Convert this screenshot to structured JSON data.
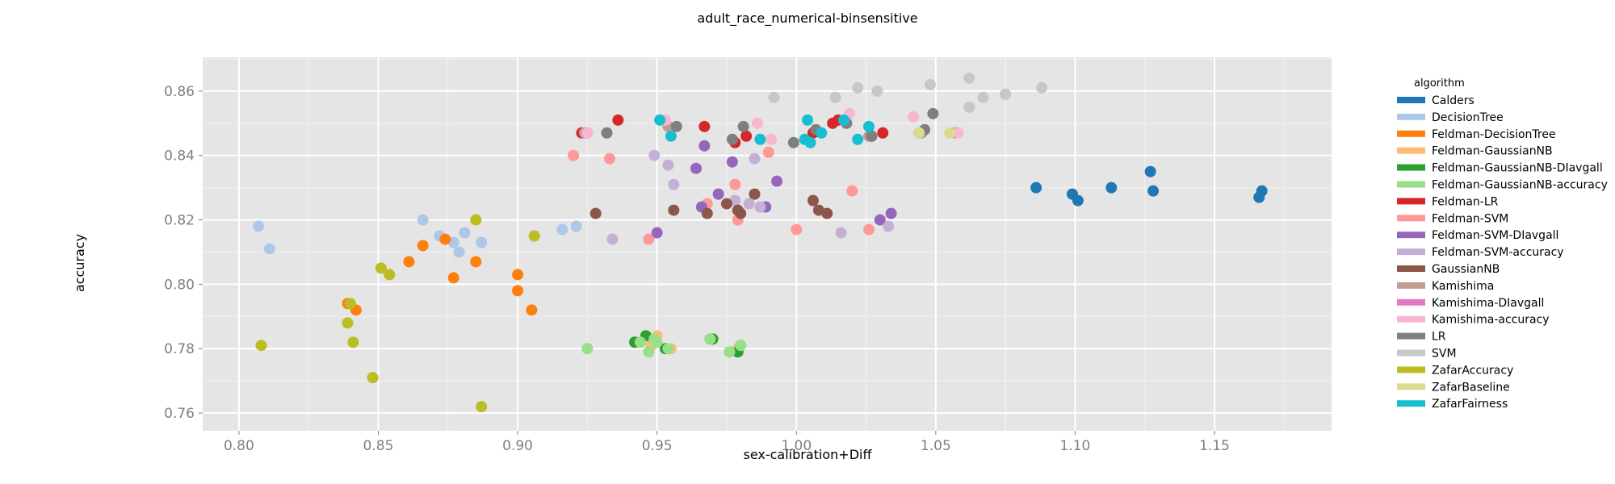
{
  "chart_data": {
    "type": "scatter",
    "title": "adult_race_numerical-binsensitive",
    "xlabel": "sex-calibration+Diff",
    "ylabel": "accuracy",
    "xlim": [
      0.787,
      1.192
    ],
    "ylim": [
      0.7545,
      0.8705
    ],
    "x_ticks": [
      0.8,
      0.85,
      0.9,
      0.95,
      1.0,
      1.05,
      1.1,
      1.15
    ],
    "x_tick_labels": [
      "0.80",
      "0.85",
      "0.90",
      "0.95",
      "1.00",
      "1.05",
      "1.10",
      "1.15"
    ],
    "y_ticks": [
      0.76,
      0.78,
      0.8,
      0.82,
      0.84,
      0.86
    ],
    "y_tick_labels": [
      "0.76",
      "0.78",
      "0.80",
      "0.82",
      "0.84",
      "0.86"
    ],
    "grid": true,
    "legend_title": "algorithm",
    "legend_position": "right",
    "series": [
      {
        "name": "Calders",
        "color": "#1f77b4",
        "points": [
          [
            1.086,
            0.83
          ],
          [
            1.099,
            0.828
          ],
          [
            1.101,
            0.826
          ],
          [
            1.113,
            0.83
          ],
          [
            1.127,
            0.835
          ],
          [
            1.128,
            0.829
          ],
          [
            1.166,
            0.827
          ],
          [
            1.167,
            0.829
          ]
        ]
      },
      {
        "name": "DecisionTree",
        "color": "#aec7e8",
        "points": [
          [
            0.807,
            0.818
          ],
          [
            0.811,
            0.811
          ],
          [
            0.866,
            0.82
          ],
          [
            0.872,
            0.815
          ],
          [
            0.877,
            0.813
          ],
          [
            0.879,
            0.81
          ],
          [
            0.881,
            0.816
          ],
          [
            0.887,
            0.813
          ],
          [
            0.916,
            0.817
          ],
          [
            0.921,
            0.818
          ]
        ]
      },
      {
        "name": "Feldman-DecisionTree",
        "color": "#ff7f0e",
        "points": [
          [
            0.839,
            0.794
          ],
          [
            0.842,
            0.792
          ],
          [
            0.861,
            0.807
          ],
          [
            0.866,
            0.812
          ],
          [
            0.874,
            0.814
          ],
          [
            0.877,
            0.802
          ],
          [
            0.885,
            0.807
          ],
          [
            0.9,
            0.803
          ],
          [
            0.9,
            0.798
          ],
          [
            0.905,
            0.792
          ]
        ]
      },
      {
        "name": "Feldman-GaussianNB",
        "color": "#ffbb78",
        "points": [
          [
            0.925,
            0.78
          ],
          [
            0.943,
            0.782
          ],
          [
            0.946,
            0.784
          ],
          [
            0.948,
            0.781
          ],
          [
            0.95,
            0.784
          ],
          [
            0.955,
            0.78
          ],
          [
            0.969,
            0.783
          ],
          [
            0.976,
            0.779
          ],
          [
            0.979,
            0.78
          ]
        ]
      },
      {
        "name": "Feldman-GaussianNB-DIavgall",
        "color": "#2ca02c",
        "points": [
          [
            0.942,
            0.782
          ],
          [
            0.946,
            0.784
          ],
          [
            0.953,
            0.78
          ],
          [
            0.97,
            0.783
          ],
          [
            0.979,
            0.779
          ],
          [
            0.98,
            0.781
          ]
        ]
      },
      {
        "name": "Feldman-GaussianNB-accuracy",
        "color": "#98df8a",
        "points": [
          [
            0.925,
            0.78
          ],
          [
            0.944,
            0.782
          ],
          [
            0.947,
            0.779
          ],
          [
            0.949,
            0.783
          ],
          [
            0.95,
            0.782
          ],
          [
            0.954,
            0.78
          ],
          [
            0.969,
            0.783
          ],
          [
            0.976,
            0.779
          ],
          [
            0.98,
            0.781
          ]
        ]
      },
      {
        "name": "Feldman-LR",
        "color": "#d62728",
        "points": [
          [
            0.923,
            0.847
          ],
          [
            0.936,
            0.851
          ],
          [
            0.967,
            0.849
          ],
          [
            0.978,
            0.844
          ],
          [
            0.982,
            0.846
          ],
          [
            1.006,
            0.847
          ],
          [
            1.013,
            0.85
          ],
          [
            1.015,
            0.851
          ],
          [
            1.027,
            0.846
          ],
          [
            1.031,
            0.847
          ]
        ]
      },
      {
        "name": "Feldman-SVM",
        "color": "#ff9896",
        "points": [
          [
            0.92,
            0.84
          ],
          [
            0.933,
            0.839
          ],
          [
            0.947,
            0.814
          ],
          [
            0.968,
            0.825
          ],
          [
            0.978,
            0.831
          ],
          [
            0.979,
            0.82
          ],
          [
            0.99,
            0.841
          ],
          [
            1.0,
            0.817
          ],
          [
            1.02,
            0.829
          ],
          [
            1.026,
            0.817
          ]
        ]
      },
      {
        "name": "Feldman-SVM-DIavgall",
        "color": "#9467bd",
        "points": [
          [
            0.95,
            0.816
          ],
          [
            0.964,
            0.836
          ],
          [
            0.966,
            0.824
          ],
          [
            0.967,
            0.843
          ],
          [
            0.972,
            0.828
          ],
          [
            0.977,
            0.838
          ],
          [
            0.989,
            0.824
          ],
          [
            0.993,
            0.832
          ],
          [
            1.03,
            0.82
          ],
          [
            1.034,
            0.822
          ]
        ]
      },
      {
        "name": "Feldman-SVM-accuracy",
        "color": "#c5b0d5",
        "points": [
          [
            0.934,
            0.814
          ],
          [
            0.949,
            0.84
          ],
          [
            0.954,
            0.837
          ],
          [
            0.956,
            0.831
          ],
          [
            0.978,
            0.826
          ],
          [
            0.983,
            0.825
          ],
          [
            0.985,
            0.839
          ],
          [
            0.987,
            0.824
          ],
          [
            1.016,
            0.816
          ],
          [
            1.033,
            0.818
          ]
        ]
      },
      {
        "name": "GaussianNB",
        "color": "#8c564b",
        "points": [
          [
            0.928,
            0.822
          ],
          [
            0.956,
            0.823
          ],
          [
            0.968,
            0.822
          ],
          [
            0.975,
            0.825
          ],
          [
            0.979,
            0.823
          ],
          [
            0.98,
            0.822
          ],
          [
            0.985,
            0.828
          ],
          [
            1.006,
            0.826
          ],
          [
            1.008,
            0.823
          ],
          [
            1.011,
            0.822
          ]
        ]
      },
      {
        "name": "Kamishima",
        "color": "#c49c94",
        "points": [
          [
            0.924,
            0.847
          ],
          [
            0.954,
            0.849
          ],
          [
            1.026,
            0.846
          ],
          [
            1.045,
            0.847
          ]
        ]
      },
      {
        "name": "Kamishima-DIavgall",
        "color": "#e377c2",
        "points": [
          [
            0.925,
            0.847
          ],
          [
            1.044,
            0.847
          ],
          [
            1.057,
            0.847
          ]
        ]
      },
      {
        "name": "Kamishima-accuracy",
        "color": "#f7b6d2",
        "points": [
          [
            0.925,
            0.847
          ],
          [
            0.953,
            0.851
          ],
          [
            0.986,
            0.85
          ],
          [
            0.991,
            0.845
          ],
          [
            1.019,
            0.853
          ],
          [
            1.042,
            0.852
          ],
          [
            1.058,
            0.847
          ]
        ]
      },
      {
        "name": "LR",
        "color": "#7f7f7f",
        "points": [
          [
            0.932,
            0.847
          ],
          [
            0.957,
            0.849
          ],
          [
            0.977,
            0.845
          ],
          [
            0.981,
            0.849
          ],
          [
            0.999,
            0.844
          ],
          [
            1.007,
            0.848
          ],
          [
            1.018,
            0.85
          ],
          [
            1.027,
            0.846
          ],
          [
            1.046,
            0.848
          ],
          [
            1.049,
            0.853
          ]
        ]
      },
      {
        "name": "SVM",
        "color": "#c7c7c7",
        "points": [
          [
            0.992,
            0.858
          ],
          [
            1.014,
            0.858
          ],
          [
            1.022,
            0.861
          ],
          [
            1.029,
            0.86
          ],
          [
            1.048,
            0.862
          ],
          [
            1.062,
            0.855
          ],
          [
            1.062,
            0.864
          ],
          [
            1.067,
            0.858
          ],
          [
            1.075,
            0.859
          ],
          [
            1.088,
            0.861
          ]
        ]
      },
      {
        "name": "ZafarAccuracy",
        "color": "#bcbd22",
        "points": [
          [
            0.808,
            0.781
          ],
          [
            0.839,
            0.788
          ],
          [
            0.84,
            0.794
          ],
          [
            0.841,
            0.782
          ],
          [
            0.848,
            0.771
          ],
          [
            0.851,
            0.805
          ],
          [
            0.854,
            0.803
          ],
          [
            0.885,
            0.82
          ],
          [
            0.887,
            0.762
          ],
          [
            0.906,
            0.815
          ]
        ]
      },
      {
        "name": "ZafarBaseline",
        "color": "#dbdb8d",
        "points": [
          [
            1.044,
            0.847
          ],
          [
            1.055,
            0.847
          ]
        ]
      },
      {
        "name": "ZafarFairness",
        "color": "#17becf",
        "points": [
          [
            0.951,
            0.851
          ],
          [
            0.955,
            0.846
          ],
          [
            0.987,
            0.845
          ],
          [
            1.003,
            0.845
          ],
          [
            1.004,
            0.851
          ],
          [
            1.005,
            0.844
          ],
          [
            1.009,
            0.847
          ],
          [
            1.017,
            0.851
          ],
          [
            1.022,
            0.845
          ],
          [
            1.026,
            0.849
          ]
        ]
      }
    ]
  }
}
